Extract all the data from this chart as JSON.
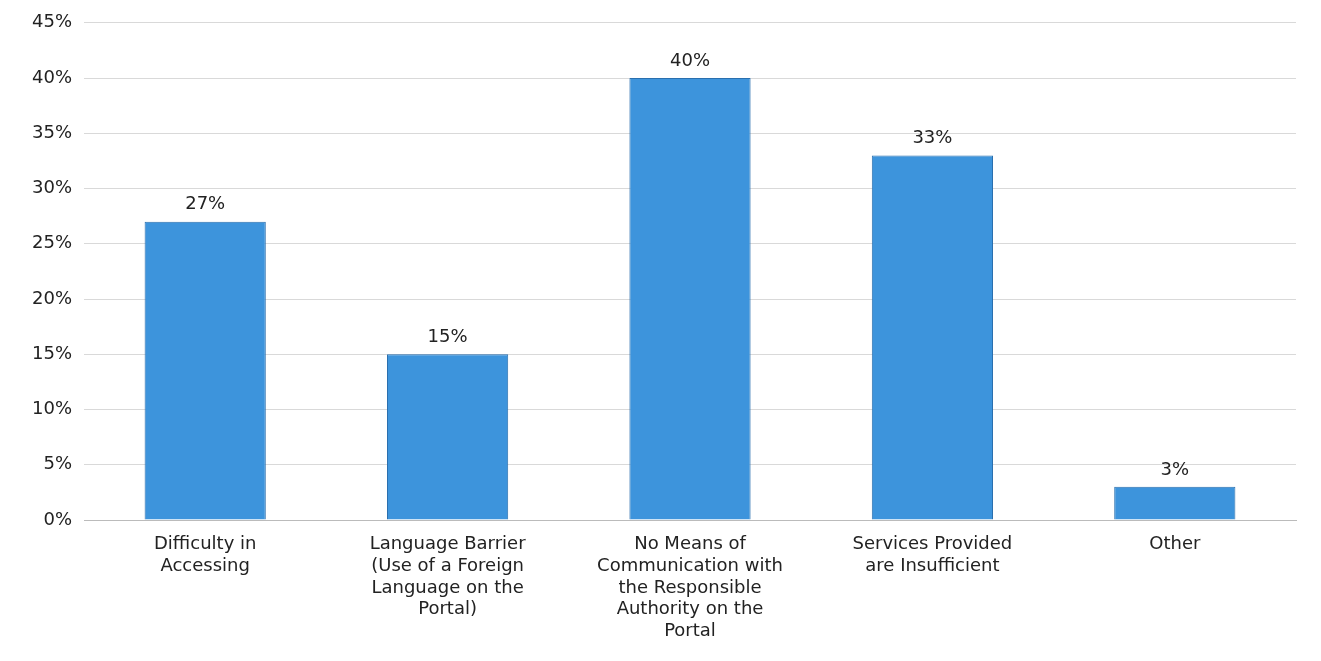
{
  "chart_data": {
    "type": "bar",
    "categories": [
      "Difficulty in Accessing",
      "Language Barrier (Use of a Foreign Language on the Portal)",
      "No Means of Communication with the Responsible Authority on the Portal",
      "Services Provided are Insufficient",
      "Other"
    ],
    "values": [
      27,
      15,
      40,
      33,
      3
    ],
    "value_labels": [
      "27%",
      "15%",
      "40%",
      "33%",
      "3%"
    ],
    "color": "#3d94dc",
    "ylim": [
      0,
      45
    ],
    "yticks": [
      {
        "value": 0,
        "label": "0%"
      },
      {
        "value": 5,
        "label": "5%"
      },
      {
        "value": 10,
        "label": "10%"
      },
      {
        "value": 15,
        "label": "15%"
      },
      {
        "value": 20,
        "label": "20%"
      },
      {
        "value": 25,
        "label": "25%"
      },
      {
        "value": 30,
        "label": "30%"
      },
      {
        "value": 35,
        "label": "35%"
      },
      {
        "value": 40,
        "label": "40%"
      },
      {
        "value": 45,
        "label": "45%"
      }
    ],
    "grid": "y",
    "legend": false
  }
}
